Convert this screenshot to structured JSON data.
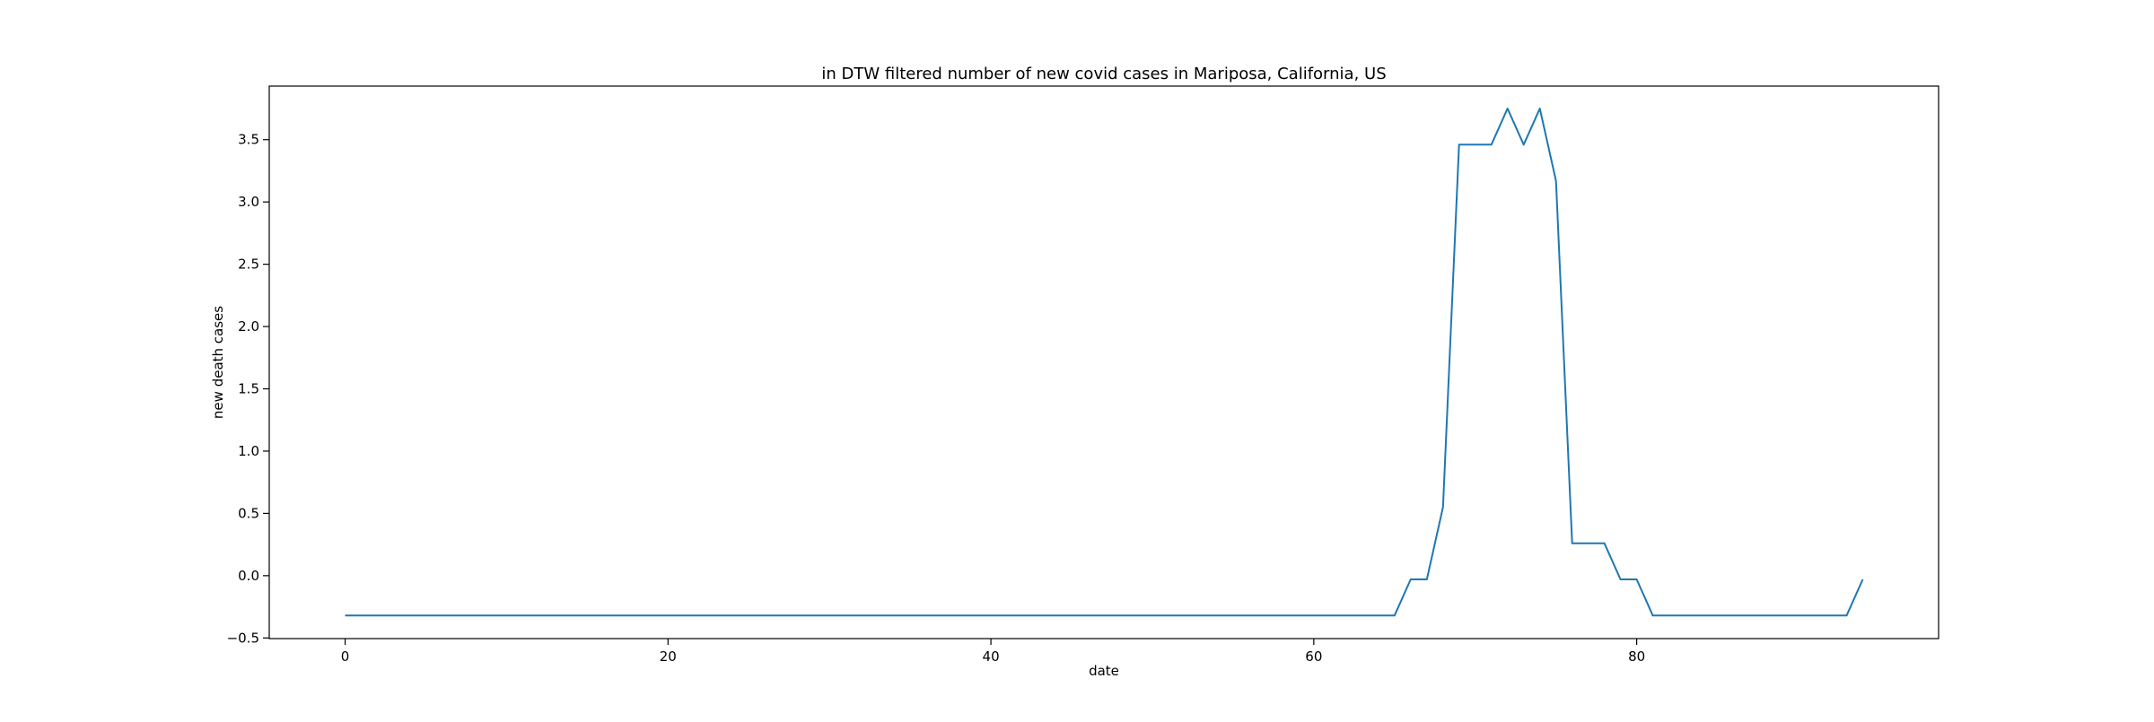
{
  "chart_data": {
    "type": "line",
    "title": "in DTW filtered number of new covid cases in Mariposa, California, US",
    "xlabel": "date",
    "ylabel": "new death cases",
    "xlim": [
      -4.7,
      98.7
    ],
    "ylim": [
      -0.505,
      3.93
    ],
    "x_ticks": [
      0,
      20,
      40,
      60,
      80
    ],
    "x_tick_labels": [
      "0",
      "20",
      "40",
      "60",
      "80"
    ],
    "y_ticks": [
      -0.5,
      0.0,
      0.5,
      1.0,
      1.5,
      2.0,
      2.5,
      3.0,
      3.5
    ],
    "y_tick_labels": [
      "−0.5",
      "0.0",
      "0.5",
      "1.0",
      "1.5",
      "2.0",
      "2.5",
      "3.0",
      "3.5"
    ],
    "grid": false,
    "color": "#1f77b4",
    "series": [
      {
        "x": [
          0,
          1,
          2,
          3,
          4,
          5,
          6,
          7,
          8,
          9,
          10,
          11,
          12,
          13,
          14,
          15,
          16,
          17,
          18,
          19,
          20,
          21,
          22,
          23,
          24,
          25,
          26,
          27,
          28,
          29,
          30,
          31,
          32,
          33,
          34,
          35,
          36,
          37,
          38,
          39,
          40,
          41,
          42,
          43,
          44,
          45,
          46,
          47,
          48,
          49,
          50,
          51,
          52,
          53,
          54,
          55,
          56,
          57,
          58,
          59,
          60,
          61,
          62,
          63,
          64,
          65,
          66,
          67,
          68,
          69,
          70,
          71,
          72,
          73,
          74,
          75,
          76,
          77,
          78,
          79,
          80,
          81,
          82,
          83,
          84,
          85,
          86,
          87,
          88,
          89,
          90,
          91,
          92,
          93,
          94
        ],
        "values": [
          -0.32,
          -0.32,
          -0.32,
          -0.32,
          -0.32,
          -0.32,
          -0.32,
          -0.32,
          -0.32,
          -0.32,
          -0.32,
          -0.32,
          -0.32,
          -0.32,
          -0.32,
          -0.32,
          -0.32,
          -0.32,
          -0.32,
          -0.32,
          -0.32,
          -0.32,
          -0.32,
          -0.32,
          -0.32,
          -0.32,
          -0.32,
          -0.32,
          -0.32,
          -0.32,
          -0.32,
          -0.32,
          -0.32,
          -0.32,
          -0.32,
          -0.32,
          -0.32,
          -0.32,
          -0.32,
          -0.32,
          -0.32,
          -0.32,
          -0.32,
          -0.32,
          -0.32,
          -0.32,
          -0.32,
          -0.32,
          -0.32,
          -0.32,
          -0.32,
          -0.32,
          -0.32,
          -0.32,
          -0.32,
          -0.32,
          -0.32,
          -0.32,
          -0.32,
          -0.32,
          -0.32,
          -0.32,
          -0.32,
          -0.32,
          -0.32,
          -0.32,
          -0.03,
          -0.03,
          0.55,
          3.46,
          3.46,
          3.46,
          3.75,
          3.46,
          3.75,
          3.17,
          0.26,
          0.26,
          0.26,
          -0.03,
          -0.03,
          -0.32,
          -0.32,
          -0.32,
          -0.32,
          -0.32,
          -0.32,
          -0.32,
          -0.32,
          -0.32,
          -0.32,
          -0.32,
          -0.32,
          -0.32,
          -0.03
        ]
      }
    ]
  }
}
